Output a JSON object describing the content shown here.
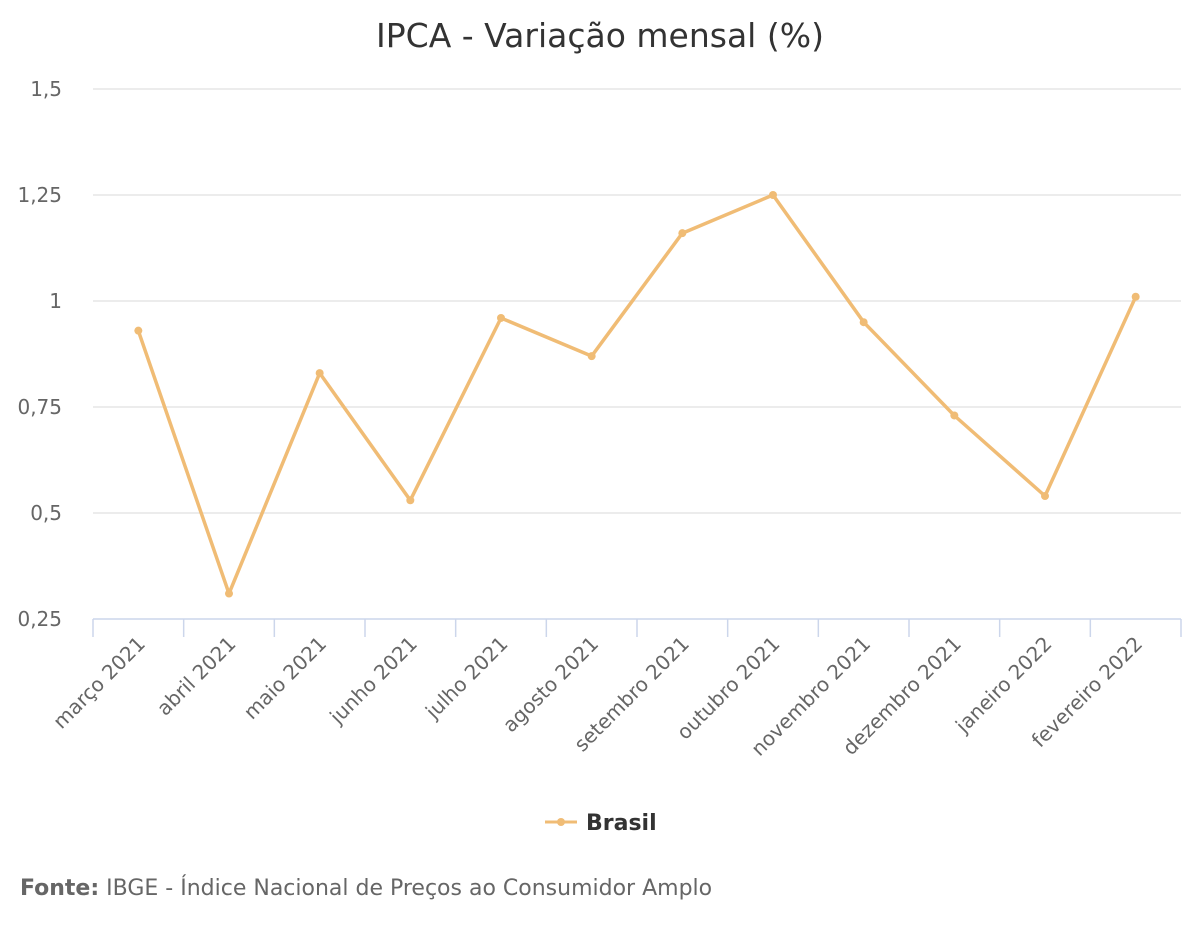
{
  "chart_data": {
    "type": "line",
    "title": "IPCA - Variação mensal (%)",
    "categories": [
      "março 2021",
      "abril 2021",
      "maio 2021",
      "junho 2021",
      "julho 2021",
      "agosto 2021",
      "setembro 2021",
      "outubro 2021",
      "novembro 2021",
      "dezembro 2021",
      "janeiro 2022",
      "fevereiro 2022"
    ],
    "series": [
      {
        "name": "Brasil",
        "color": "#f0bc75",
        "values": [
          0.93,
          0.31,
          0.83,
          0.53,
          0.96,
          0.87,
          1.16,
          1.25,
          0.95,
          0.73,
          0.54,
          1.01
        ]
      }
    ],
    "y_ticks": [
      "0,25",
      "0,5",
      "0,75",
      "1",
      "1,25",
      "1,5"
    ],
    "ylim": [
      0.25,
      1.5
    ],
    "grid": true,
    "legend_position": "bottom-center"
  },
  "source": {
    "label": "Fonte:",
    "text": "IBGE - Índice Nacional de Preços ao Consumidor Amplo"
  }
}
